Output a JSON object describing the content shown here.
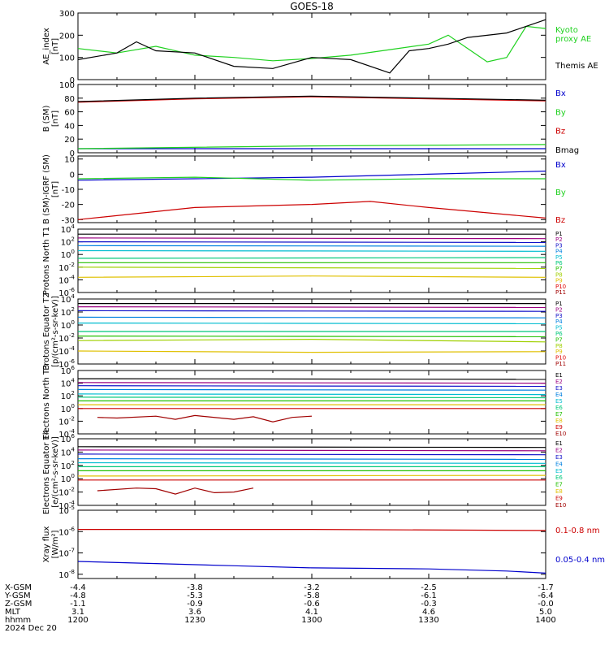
{
  "title": "GOES-18",
  "colors": {
    "black": "#000000",
    "green": "#1fd11f",
    "blue": "#0000cc",
    "red": "#cc0000",
    "p": [
      "#000000",
      "#9b0080",
      "#1010c8",
      "#0080e0",
      "#00bcd0",
      "#00c87a",
      "#22c000",
      "#a0d000",
      "#e0c000",
      "#f08000",
      "#e00000",
      "#a00000"
    ]
  },
  "chart_data": [
    {
      "type": "line",
      "name": "ae",
      "ylabel": "AE_index [nT]",
      "ylim": [
        0,
        300
      ],
      "yticks": [
        "0",
        "100",
        "200",
        "300"
      ],
      "ylog": false,
      "series": [
        {
          "name": "Kyoto proxy AE",
          "label": "Kyoto\nproxy AE",
          "color": "#1fd11f",
          "x": [
            1200,
            1210,
            1220,
            1230,
            1240,
            1250,
            1300,
            1310,
            1320,
            1330,
            1335,
            1340,
            1345,
            1350,
            1355,
            1400
          ],
          "y": [
            140,
            120,
            150,
            110,
            100,
            85,
            95,
            110,
            135,
            160,
            200,
            140,
            80,
            100,
            240,
            230
          ]
        },
        {
          "name": "Themis AE",
          "label": "Themis AE",
          "color": "#000000",
          "x": [
            1200,
            1210,
            1215,
            1220,
            1230,
            1240,
            1250,
            1300,
            1310,
            1320,
            1325,
            1330,
            1335,
            1340,
            1350,
            1400
          ],
          "y": [
            90,
            120,
            170,
            130,
            120,
            60,
            50,
            100,
            90,
            30,
            130,
            140,
            160,
            190,
            210,
            270
          ]
        }
      ]
    },
    {
      "type": "line",
      "name": "bsm",
      "ylabel": "B (SM) [nT]",
      "ylim": [
        0,
        100
      ],
      "yticks": [
        "0",
        "20",
        "40",
        "60",
        "80",
        "100"
      ],
      "ylog": false,
      "series": [
        {
          "name": "Bx",
          "label": "Bx",
          "color": "#0000cc",
          "x": [
            1200,
            1400
          ],
          "y": [
            6,
            6
          ]
        },
        {
          "name": "By",
          "label": "By",
          "color": "#1fd11f",
          "x": [
            1200,
            1300,
            1400
          ],
          "y": [
            6,
            10,
            12
          ]
        },
        {
          "name": "Bz",
          "label": "Bz",
          "color": "#cc0000",
          "x": [
            1200,
            1230,
            1300,
            1400
          ],
          "y": [
            74,
            79,
            82,
            76
          ]
        },
        {
          "name": "Bmag",
          "label": "Bmag",
          "color": "#000000",
          "x": [
            1200,
            1230,
            1300,
            1400
          ],
          "y": [
            75,
            80,
            83,
            77
          ]
        }
      ]
    },
    {
      "type": "line",
      "name": "bdiff",
      "ylabel": "B (SM)-IGRF (SM) [nT]",
      "ylim": [
        -32,
        12
      ],
      "yticks": [
        "-30",
        "-20",
        "-10",
        "0",
        "10"
      ],
      "ylog": false,
      "series": [
        {
          "name": "Bx",
          "label": "Bx",
          "color": "#0000cc",
          "x": [
            1200,
            1230,
            1300,
            1330,
            1400
          ],
          "y": [
            -4,
            -3,
            -2,
            0,
            2
          ]
        },
        {
          "name": "By",
          "label": "By",
          "color": "#1fd11f",
          "x": [
            1200,
            1230,
            1300,
            1330,
            1400
          ],
          "y": [
            -3,
            -2,
            -4,
            -3,
            -3
          ]
        },
        {
          "name": "Bz",
          "label": "Bz",
          "color": "#cc0000",
          "x": [
            1200,
            1230,
            1300,
            1315,
            1330,
            1400
          ],
          "y": [
            -30,
            -22,
            -20,
            -18,
            -22,
            -29
          ]
        }
      ]
    },
    {
      "type": "line",
      "name": "pt1",
      "ylabel": "Protons North T1",
      "ylim": [
        -6,
        4
      ],
      "yticks": [
        "10^-6",
        "10^-4",
        "10^-2",
        "10^0",
        "10^2",
        "10^4"
      ],
      "ylog": true,
      "series": [
        {
          "name": "P1",
          "label": "P1",
          "color": "#000000",
          "x": [
            1200,
            1400
          ],
          "y": [
            3.2,
            3.2
          ]
        },
        {
          "name": "P2",
          "label": "P2",
          "color": "#9b0080",
          "x": [
            1200,
            1400
          ],
          "y": [
            2.6,
            2.5
          ]
        },
        {
          "name": "P3",
          "label": "P3",
          "color": "#1010c8",
          "x": [
            1200,
            1400
          ],
          "y": [
            2.0,
            1.9
          ]
        },
        {
          "name": "P4",
          "label": "P4",
          "color": "#0080e0",
          "x": [
            1200,
            1400
          ],
          "y": [
            1.4,
            1.3
          ]
        },
        {
          "name": "P5",
          "label": "P5",
          "color": "#00bcd0",
          "x": [
            1200,
            1400
          ],
          "y": [
            0.6,
            0.5
          ]
        },
        {
          "name": "P6",
          "label": "P6",
          "color": "#00c87a",
          "x": [
            1200,
            1400
          ],
          "y": [
            -0.6,
            -0.5
          ]
        },
        {
          "name": "P7",
          "label": "P7",
          "color": "#22c000",
          "x": [
            1200,
            1400
          ],
          "y": [
            -1.3,
            -1.3
          ]
        },
        {
          "name": "P8",
          "label": "P8",
          "color": "#a0d000",
          "x": [
            1200,
            1400
          ],
          "y": [
            -2.0,
            -2.2
          ]
        },
        {
          "name": "P9",
          "label": "P9",
          "color": "#e0c000",
          "x": [
            1200,
            1300,
            1400
          ],
          "y": [
            -3.6,
            -3.4,
            -3.6
          ]
        }
      ],
      "legend_only": [
        "P10",
        "P11"
      ]
    },
    {
      "type": "line",
      "name": "pt2",
      "ylabel": "Protons Equator T2 [p/(cm²-s-sr-keV)]",
      "ylim": [
        -6,
        4
      ],
      "yticks": [
        "10^-6",
        "10^-4",
        "10^-2",
        "10^0",
        "10^2",
        "10^4"
      ],
      "ylog": true,
      "series": [
        {
          "name": "P1",
          "label": "P1",
          "color": "#000000",
          "x": [
            1200,
            1400
          ],
          "y": [
            3.3,
            3.3
          ]
        },
        {
          "name": "P2",
          "label": "P2",
          "color": "#9b0080",
          "x": [
            1200,
            1400
          ],
          "y": [
            2.8,
            2.7
          ]
        },
        {
          "name": "P3",
          "label": "P3",
          "color": "#1010c8",
          "x": [
            1200,
            1400
          ],
          "y": [
            2.2,
            2.1
          ]
        },
        {
          "name": "P4",
          "label": "P4",
          "color": "#0080e0",
          "x": [
            1200,
            1400
          ],
          "y": [
            1.2,
            1.1
          ]
        },
        {
          "name": "P5",
          "label": "P5",
          "color": "#00bcd0",
          "x": [
            1200,
            1400
          ],
          "y": [
            0.3,
            0.2
          ]
        },
        {
          "name": "P6",
          "label": "P6",
          "color": "#00c87a",
          "x": [
            1200,
            1400
          ],
          "y": [
            -1.0,
            -1.0
          ]
        },
        {
          "name": "P7",
          "label": "P7",
          "color": "#22c000",
          "x": [
            1200,
            1400
          ],
          "y": [
            -1.7,
            -1.8
          ]
        },
        {
          "name": "P8",
          "label": "P8",
          "color": "#a0d000",
          "x": [
            1200,
            1300,
            1400
          ],
          "y": [
            -2.4,
            -2.2,
            -2.6
          ]
        },
        {
          "name": "P9",
          "label": "P9",
          "color": "#e0c000",
          "x": [
            1200,
            1300,
            1400
          ],
          "y": [
            -4.0,
            -4.2,
            -4.1
          ]
        }
      ],
      "legend_only": [
        "P10",
        "P11"
      ]
    },
    {
      "type": "line",
      "name": "et3",
      "ylabel": "Electrons North T3",
      "ylim": [
        -4,
        6
      ],
      "yticks": [
        "10^-4",
        "10^-2",
        "10^0",
        "10^2",
        "10^4",
        "10^6"
      ],
      "ylog": true,
      "series": [
        {
          "name": "E1",
          "label": "E1",
          "color": "#000000",
          "x": [
            1200,
            1400
          ],
          "y": [
            4.7,
            4.6
          ]
        },
        {
          "name": "E2",
          "label": "E2",
          "color": "#9b0080",
          "x": [
            1200,
            1400
          ],
          "y": [
            4.1,
            4.0
          ]
        },
        {
          "name": "E3",
          "label": "E3",
          "color": "#1010c8",
          "x": [
            1200,
            1400
          ],
          "y": [
            3.6,
            3.5
          ]
        },
        {
          "name": "E4",
          "label": "E4",
          "color": "#0080e0",
          "x": [
            1200,
            1400
          ],
          "y": [
            3.0,
            2.9
          ]
        },
        {
          "name": "E5",
          "label": "E5",
          "color": "#00bcd0",
          "x": [
            1200,
            1400
          ],
          "y": [
            2.3,
            2.2
          ]
        },
        {
          "name": "E6",
          "label": "E6",
          "color": "#00c87a",
          "x": [
            1200,
            1400
          ],
          "y": [
            1.8,
            1.7
          ]
        },
        {
          "name": "E7",
          "label": "E7",
          "color": "#22c000",
          "x": [
            1200,
            1400
          ],
          "y": [
            1.2,
            1.2
          ]
        },
        {
          "name": "E8",
          "label": "E8",
          "color": "#e0c000",
          "x": [
            1200,
            1400
          ],
          "y": [
            0.6,
            0.6
          ]
        },
        {
          "name": "E9",
          "label": "E9",
          "color": "#cc0000",
          "x": [
            1200,
            1400
          ],
          "y": [
            0.0,
            0.0
          ]
        },
        {
          "name": "E10",
          "label": "E10",
          "color": "#a00000",
          "x": [
            1205,
            1210,
            1220,
            1225,
            1230,
            1240,
            1245,
            1250,
            1255,
            1300
          ],
          "y": [
            -1.4,
            -1.5,
            -1.2,
            -1.7,
            -1.1,
            -1.7,
            -1.3,
            -2.1,
            -1.4,
            -1.2
          ]
        }
      ]
    },
    {
      "type": "line",
      "name": "et4",
      "ylabel": "Electrons Equator T4 [e/(cm²-s-sr-keV)]",
      "ylim": [
        -4,
        6
      ],
      "yticks": [
        "10^-4",
        "10^-2",
        "10^0",
        "10^2",
        "10^4",
        "10^6"
      ],
      "ylog": true,
      "series": [
        {
          "name": "E1",
          "label": "E1",
          "color": "#000000",
          "x": [
            1200,
            1400
          ],
          "y": [
            4.8,
            4.7
          ]
        },
        {
          "name": "E2",
          "label": "E2",
          "color": "#9b0080",
          "x": [
            1200,
            1400
          ],
          "y": [
            4.3,
            4.2
          ]
        },
        {
          "name": "E3",
          "label": "E3",
          "color": "#1010c8",
          "x": [
            1200,
            1400
          ],
          "y": [
            3.7,
            3.6
          ]
        },
        {
          "name": "E4",
          "label": "E4",
          "color": "#0080e0",
          "x": [
            1200,
            1400
          ],
          "y": [
            3.0,
            2.9
          ]
        },
        {
          "name": "E5",
          "label": "E5",
          "color": "#00bcd0",
          "x": [
            1200,
            1400
          ],
          "y": [
            2.4,
            2.3
          ]
        },
        {
          "name": "E6",
          "label": "E6",
          "color": "#00c87a",
          "x": [
            1200,
            1400
          ],
          "y": [
            1.8,
            1.8
          ]
        },
        {
          "name": "E7",
          "label": "E7",
          "color": "#22c000",
          "x": [
            1200,
            1400
          ],
          "y": [
            1.2,
            1.2
          ]
        },
        {
          "name": "E8",
          "label": "E8",
          "color": "#e0c000",
          "x": [
            1200,
            1400
          ],
          "y": [
            0.4,
            0.5
          ]
        },
        {
          "name": "E9",
          "label": "E9",
          "color": "#cc0000",
          "x": [
            1200,
            1400
          ],
          "y": [
            -0.2,
            -0.2
          ]
        },
        {
          "name": "E10",
          "label": "E10",
          "color": "#a00000",
          "x": [
            1205,
            1215,
            1220,
            1225,
            1230,
            1235,
            1240,
            1245
          ],
          "y": [
            -1.8,
            -1.4,
            -1.5,
            -2.3,
            -1.4,
            -2.1,
            -2.0,
            -1.4
          ]
        }
      ]
    },
    {
      "type": "line",
      "name": "xray",
      "ylabel": "Xray flux [W/m²]",
      "ylim": [
        -8.2,
        -5
      ],
      "yticks": [
        "10^-8",
        "10^-7",
        "10^-6",
        "10^-5"
      ],
      "ylog": true,
      "series": [
        {
          "name": "0.1-0.8 nm",
          "label": "0.1-0.8 nm",
          "color": "#cc0000",
          "x": [
            1200,
            1300,
            1400
          ],
          "y": [
            -5.9,
            -5.9,
            -5.95
          ]
        },
        {
          "name": "0.05-0.4 nm",
          "label": "0.05-0.4 nm",
          "color": "#0000cc",
          "x": [
            1200,
            1220,
            1240,
            1300,
            1330,
            1350,
            1400
          ],
          "y": [
            -7.4,
            -7.5,
            -7.6,
            -7.7,
            -7.75,
            -7.85,
            -7.95
          ]
        }
      ]
    }
  ],
  "xaxis": {
    "row_labels": [
      "X-GSM",
      "Y-GSM",
      "Z-GSM",
      "MLT",
      "hhmm",
      "2024 Dec 20"
    ],
    "ticks": [
      {
        "x": 1200,
        "rows": [
          "-4.4",
          "-4.8",
          "-1.1",
          "3.1",
          "1200"
        ]
      },
      {
        "x": 1230,
        "rows": [
          "-3.8",
          "-5.3",
          "-0.9",
          "3.6",
          "1230"
        ]
      },
      {
        "x": 1300,
        "rows": [
          "-3.2",
          "-5.8",
          "-0.6",
          "4.1",
          "1300"
        ]
      },
      {
        "x": 1330,
        "rows": [
          "-2.5",
          "-6.1",
          "-0.3",
          "4.6",
          "1330"
        ]
      },
      {
        "x": 1400,
        "rows": [
          "-1.7",
          "-6.4",
          "-0.0",
          "5.0",
          "1400"
        ]
      }
    ]
  }
}
